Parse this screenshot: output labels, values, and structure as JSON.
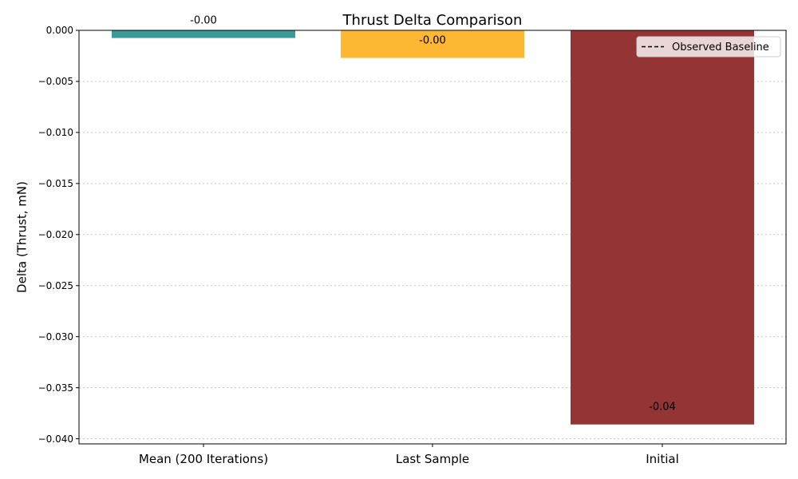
{
  "chart_data": {
    "type": "bar",
    "title": "Thrust Delta Comparison",
    "xlabel": "",
    "ylabel": "Delta (Thrust, mN)",
    "categories": [
      "Mean (200 Iterations)",
      "Last Sample",
      "Initial"
    ],
    "values": [
      -0.00075,
      -0.0027,
      -0.0386
    ],
    "data_labels": [
      "-0.00",
      "-0.00",
      "-0.04"
    ],
    "colors": [
      "#3a9a98",
      "#fdb733",
      "#943434"
    ],
    "ylim": [
      -0.0405,
      0.0
    ],
    "yticks": [
      0.0,
      -0.005,
      -0.01,
      -0.015,
      -0.02,
      -0.025,
      -0.03,
      -0.035,
      -0.04
    ],
    "ytick_labels": [
      "0.000",
      "−0.005",
      "−0.010",
      "−0.015",
      "−0.020",
      "−0.025",
      "−0.030",
      "−0.035",
      "−0.040"
    ],
    "grid": "y-dotted",
    "legend": {
      "placement": "top-right",
      "entries": [
        {
          "label": "Observed Baseline",
          "style": "dashed-line",
          "color": "#000000"
        }
      ]
    }
  }
}
